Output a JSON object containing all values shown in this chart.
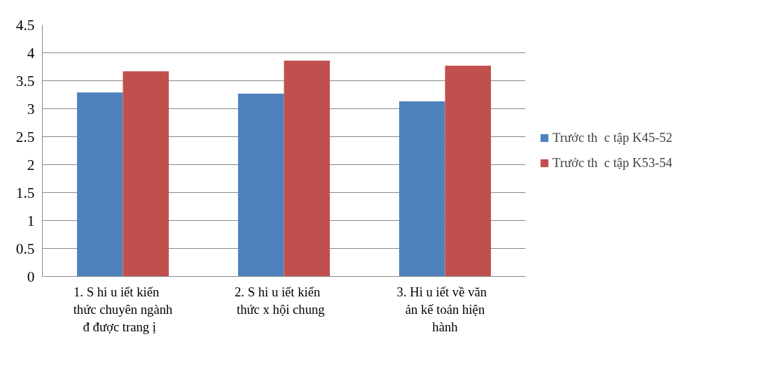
{
  "chart_data": {
    "type": "bar",
    "categories": [
      "1. S   hi u   iết kiến\nthức chuyên ngành\nđ  được trang  ị",
      "2. S   hi u   iết kiến\nthức x   hội chung",
      "3. Hi u   iết về văn\nản kế toán hiện\nhành"
    ],
    "series": [
      {
        "name": "Trước th  c tập K45-52",
        "color": "#4f81bd",
        "values": [
          3.29,
          3.27,
          3.13
        ]
      },
      {
        "name": "Trước th  c tập K53-54",
        "color": "#c0504d",
        "values": [
          3.67,
          3.86,
          3.77
        ]
      }
    ],
    "ylim": [
      0,
      4.5
    ],
    "yticks": [
      0,
      0.5,
      1,
      1.5,
      2,
      2.5,
      3,
      3.5,
      4,
      4.5
    ],
    "grid": "y",
    "legend": "right"
  }
}
